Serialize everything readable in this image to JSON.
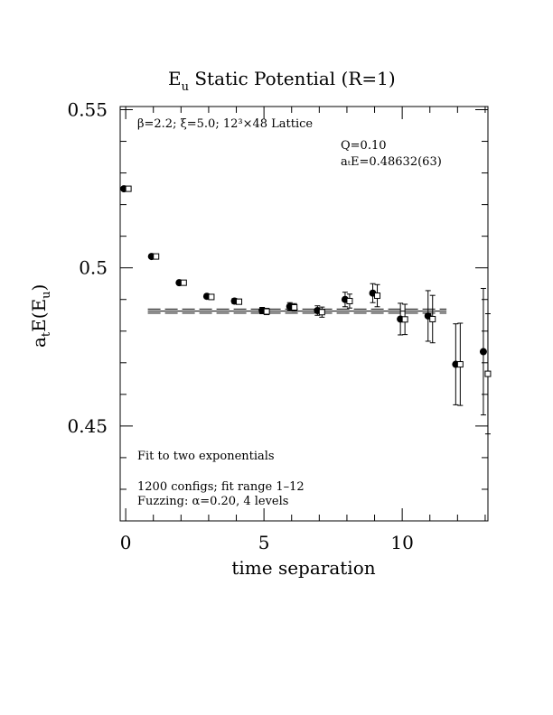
{
  "chart_data": {
    "type": "scatter",
    "title": "E",
    "title_sub": "u",
    "title_rest": " Static Potential (R=1)",
    "xlabel": "time separation",
    "ylabel_main": "a",
    "ylabel_sub1": "t",
    "ylabel_mid": "E(E",
    "ylabel_sub2": "u",
    "ylabel_end": ")",
    "xlim": [
      -0.2,
      13.1
    ],
    "ylim": [
      0.42,
      0.551
    ],
    "x_ticks": [
      0,
      5,
      10
    ],
    "y_ticks": [
      0.45,
      0.5,
      0.55
    ],
    "x_tick_labels": [
      "0",
      "5",
      "10"
    ],
    "y_tick_labels": [
      "0.45",
      "0.5",
      "0.55"
    ],
    "grid": false,
    "annotations": {
      "lattice": "β=2.2; ξ=5.0; 12³×48 Lattice",
      "q": "Q=0.10",
      "energy": "aₜE=0.48632(63)",
      "fit": "Fit to two exponentials",
      "configs": "1200 configs; fit range 1–12",
      "fuzzing": "Fuzzing: α=0.20, 4 levels"
    },
    "fit": {
      "value": 0.48632,
      "error": 0.00063,
      "x_range": [
        0.8,
        11.6
      ]
    },
    "series": [
      {
        "marker": "filled-circle",
        "points": [
          {
            "x": 0,
            "y": 0.525,
            "err": 0.0004
          },
          {
            "x": 1,
            "y": 0.5036,
            "err": 0.0005
          },
          {
            "x": 2,
            "y": 0.4953,
            "err": 0.0006
          },
          {
            "x": 3,
            "y": 0.491,
            "err": 0.0007
          },
          {
            "x": 4,
            "y": 0.4895,
            "err": 0.0008
          },
          {
            "x": 5,
            "y": 0.4865,
            "err": 0.001
          },
          {
            "x": 6,
            "y": 0.4878,
            "err": 0.0012
          },
          {
            "x": 7,
            "y": 0.4865,
            "err": 0.0015
          },
          {
            "x": 8,
            "y": 0.49,
            "err": 0.0023
          },
          {
            "x": 9,
            "y": 0.492,
            "err": 0.003
          },
          {
            "x": 10,
            "y": 0.4838,
            "err": 0.005
          },
          {
            "x": 11,
            "y": 0.4848,
            "err": 0.008
          },
          {
            "x": 12,
            "y": 0.4695,
            "err": 0.0128
          },
          {
            "x": 13,
            "y": 0.4735,
            "err": 0.02
          }
        ]
      },
      {
        "marker": "open-square",
        "points": [
          {
            "x": 0,
            "y": 0.525,
            "err": 0.0004
          },
          {
            "x": 1,
            "y": 0.5036,
            "err": 0.0005
          },
          {
            "x": 2,
            "y": 0.4953,
            "err": 0.0006
          },
          {
            "x": 3,
            "y": 0.4908,
            "err": 0.0007
          },
          {
            "x": 4,
            "y": 0.4893,
            "err": 0.0008
          },
          {
            "x": 5,
            "y": 0.4862,
            "err": 0.001
          },
          {
            "x": 6,
            "y": 0.4875,
            "err": 0.0012
          },
          {
            "x": 7,
            "y": 0.486,
            "err": 0.0016
          },
          {
            "x": 8,
            "y": 0.4895,
            "err": 0.0022
          },
          {
            "x": 9,
            "y": 0.4912,
            "err": 0.0035
          },
          {
            "x": 10,
            "y": 0.4837,
            "err": 0.0048
          },
          {
            "x": 11,
            "y": 0.4838,
            "err": 0.0075
          },
          {
            "x": 12,
            "y": 0.4695,
            "err": 0.013
          },
          {
            "x": 13,
            "y": 0.4665,
            "err": 0.019
          }
        ]
      }
    ]
  }
}
